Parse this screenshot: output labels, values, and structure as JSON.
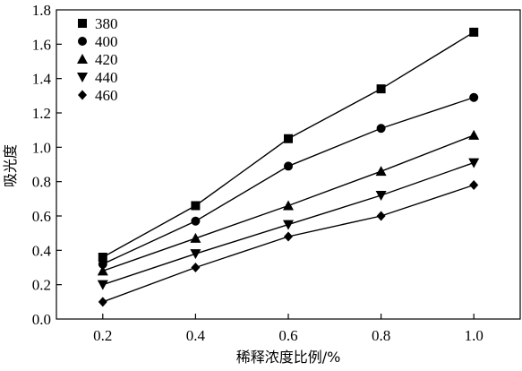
{
  "chart_data": {
    "type": "line",
    "title": "",
    "xlabel": "稀释浓度比例/%",
    "ylabel": "吸光度",
    "x": [
      0.2,
      0.4,
      0.6,
      0.8,
      1.0
    ],
    "x_tick_labels": [
      "0.2",
      "0.4",
      "0.6",
      "0.8",
      "1.0"
    ],
    "y_tick_labels": [
      "0.0",
      "0.2",
      "0.4",
      "0.6",
      "0.8",
      "1.0",
      "1.2",
      "1.4",
      "1.6",
      "1.8"
    ],
    "xlim": [
      0.1,
      1.1
    ],
    "ylim": [
      0.0,
      1.8
    ],
    "grid": false,
    "legend_position": "top-left",
    "series": [
      {
        "name": "380",
        "marker": "square",
        "values": [
          0.36,
          0.66,
          1.05,
          1.34,
          1.67
        ]
      },
      {
        "name": "400",
        "marker": "circle",
        "values": [
          0.32,
          0.57,
          0.89,
          1.11,
          1.29
        ]
      },
      {
        "name": "420",
        "marker": "triangle-up",
        "values": [
          0.28,
          0.47,
          0.66,
          0.86,
          1.07
        ]
      },
      {
        "name": "440",
        "marker": "triangle-down",
        "values": [
          0.2,
          0.38,
          0.55,
          0.72,
          0.91
        ]
      },
      {
        "name": "460",
        "marker": "diamond",
        "values": [
          0.1,
          0.3,
          0.48,
          0.6,
          0.78
        ]
      }
    ]
  }
}
